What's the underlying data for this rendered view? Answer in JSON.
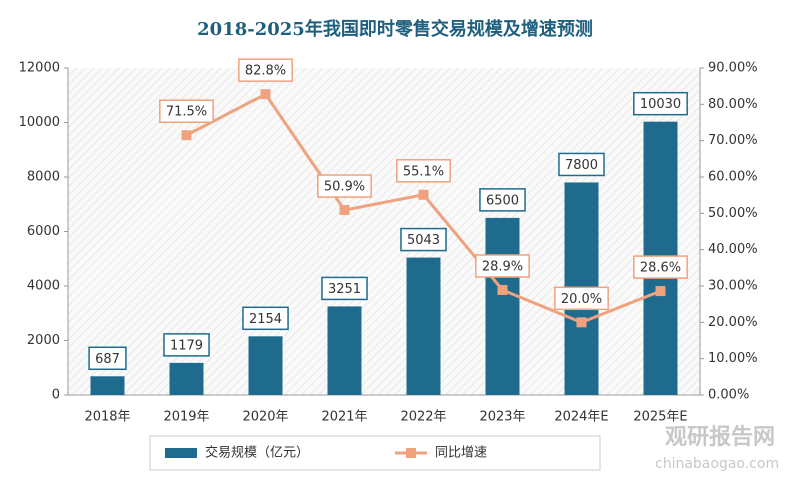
{
  "chart_data": {
    "type": "bar",
    "title": "2018-2025年我国即时零售交易规模及增速预测",
    "categories": [
      "2018年",
      "2019年",
      "2020年",
      "2021年",
      "2022年",
      "2023年",
      "2024年E",
      "2025年E"
    ],
    "series": [
      {
        "name": "交易规模（亿元）",
        "type": "bar",
        "color": "#1f6b8e",
        "values": [
          687,
          1179,
          2154,
          3251,
          5043,
          6500,
          7800,
          10030
        ]
      },
      {
        "name": "同比增速",
        "type": "line",
        "axis": "y2",
        "color": "#f0a27e",
        "values": [
          null,
          71.5,
          82.8,
          50.9,
          55.1,
          28.9,
          20.0,
          28.6
        ],
        "value_labels": [
          null,
          "71.5%",
          "82.8%",
          "50.9%",
          "55.1%",
          "28.9%",
          "20.0%",
          "28.6%"
        ]
      }
    ],
    "ylim": [
      0,
      12000
    ],
    "yticks": [
      0,
      2000,
      4000,
      6000,
      8000,
      10000,
      12000
    ],
    "y2lim": [
      0,
      90
    ],
    "y2ticks": [
      {
        "value": 0,
        "label": "0.00%"
      },
      {
        "value": 10,
        "label": "10.00%"
      },
      {
        "value": 20,
        "label": "20.00%"
      },
      {
        "value": 30,
        "label": "30.00%"
      },
      {
        "value": 40,
        "label": "40.00%"
      },
      {
        "value": 50,
        "label": "50.00%"
      },
      {
        "value": 60,
        "label": "60.00%"
      },
      {
        "value": 70,
        "label": "70.00%"
      },
      {
        "value": 80,
        "label": "80.00%"
      },
      {
        "value": 90,
        "label": "90.00%"
      }
    ],
    "legend": "bottom",
    "watermark": {
      "brand": "观研报告网",
      "url": "chinabaogao.com"
    }
  }
}
